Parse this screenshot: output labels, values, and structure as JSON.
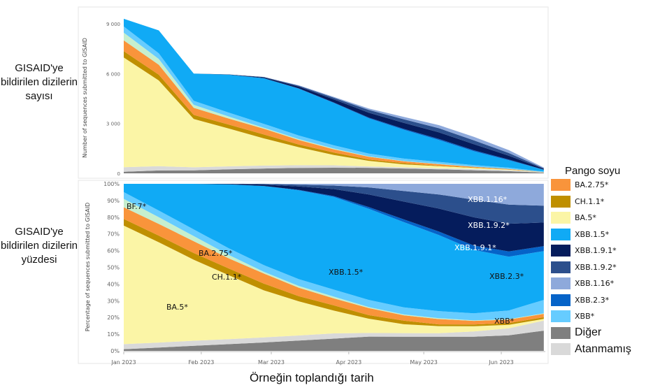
{
  "row_labels": {
    "top": "GISAID'ye bildirilen dizilerin sayısı",
    "bottom": "GISAID'ye bildirilen dizilerin yüzdesi"
  },
  "legend": {
    "title": "Pango soyu",
    "items": [
      {
        "label": "BA.2.75*",
        "color": "#f9943b"
      },
      {
        "label": "CH.1.1*",
        "color": "#bf8f00"
      },
      {
        "label": "BA.5*",
        "color": "#fbf5a6"
      },
      {
        "label": "XBB.1.5*",
        "color": "#10aaf5"
      },
      {
        "label": "XBB.1.9.1*",
        "color": "#051c5c"
      },
      {
        "label": "XBB.1.9.2*",
        "color": "#2c4f8c"
      },
      {
        "label": "XBB.1.16*",
        "color": "#8ea9db"
      },
      {
        "label": "XBB.2.3*",
        "color": "#0563c8"
      },
      {
        "label": "XBB*",
        "color": "#66ccff"
      },
      {
        "label": "Diğer",
        "color": "#7f7f7f"
      },
      {
        "label": "Atanmamış",
        "color": "#d9d9d9"
      }
    ]
  },
  "annotations": {
    "bf7": "BF.7*",
    "ba275": "BA.2.75*",
    "ch11": "CH.1.1*",
    "ba5": "BA.5*",
    "xbb15": "XBB.1.5*",
    "xbb116": "XBB.1.16*",
    "xbb192": "XBB.1.9.2*",
    "xbb191": "XBB.1.9.1*",
    "xbb23": "XBB.2.3*",
    "xbb": "XBB*"
  },
  "chart_data": [
    {
      "type": "area",
      "title": "",
      "ylabel": "Number of sequences submitted to GISAID",
      "xlabel": "Örneğin toplandığı tarih",
      "ylim": [
        0,
        9300
      ],
      "yticks": [
        "0",
        "3 000",
        "6 000",
        "9 000"
      ],
      "ytick_values": [
        0,
        3000,
        6000,
        9000
      ],
      "note": "stacked counts = total × share (see percentage chart)",
      "total": [
        9300,
        8600,
        6000,
        5950,
        5800,
        5300,
        4600,
        3900,
        3400,
        2900,
        2200,
        1400,
        350
      ]
    },
    {
      "type": "area",
      "title": "",
      "ylabel": "Percentage of sequences submitted to GISAID",
      "ylim": [
        0,
        100
      ],
      "yticks": [
        "0%",
        "10%",
        "20%",
        "30%",
        "40%",
        "50%",
        "60%",
        "70%",
        "80%",
        "90%",
        "100%"
      ],
      "x_days": [
        0,
        14,
        28,
        42,
        56,
        70,
        84,
        98,
        112,
        126,
        140,
        154,
        168
      ],
      "xticks": [
        "Jan 2023",
        "Feb 2023",
        "Mar 2023",
        "Apr 2023",
        "May 2023",
        "Jun 2023"
      ],
      "xtick_days": [
        0,
        31,
        59,
        90,
        120,
        151
      ],
      "series": [
        {
          "name": "Diğer",
          "color": "#7f7f7f",
          "values": [
            1,
            2,
            3,
            4,
            5,
            6,
            7,
            8,
            8,
            8,
            8,
            9,
            12
          ]
        },
        {
          "name": "Atanmamış",
          "color": "#d9d9d9",
          "values": [
            3,
            3,
            3,
            3,
            3,
            3,
            3,
            2,
            2,
            2,
            3,
            4,
            6
          ]
        },
        {
          "name": "BA.5*",
          "color": "#fbf5a6",
          "values": [
            71,
            60,
            48,
            38,
            28,
            20,
            13,
            8,
            5,
            4,
            3,
            2,
            1
          ]
        },
        {
          "name": "CH.1.1*",
          "color": "#bf8f00",
          "values": [
            4,
            4,
            4,
            4,
            4,
            3,
            3,
            2,
            2,
            1,
            1,
            1,
            1
          ]
        },
        {
          "name": "BA.2.75*",
          "color": "#f9943b",
          "values": [
            7,
            7,
            7,
            6,
            6,
            5,
            4,
            4,
            3,
            3,
            2,
            2,
            2
          ]
        },
        {
          "name": "BF.7*",
          "color": "#c6efce",
          "values": [
            5,
            4,
            3,
            2,
            1,
            1,
            1,
            0.5,
            0.5,
            0.5,
            0.3,
            0.3,
            0.3
          ]
        },
        {
          "name": "XBB*",
          "color": "#66ccff",
          "values": [
            4,
            4,
            4,
            4,
            4,
            4,
            4,
            4,
            4,
            4,
            4,
            5,
            8
          ]
        },
        {
          "name": "XBB.1.5*",
          "color": "#10aaf5",
          "values": [
            5,
            16,
            27,
            38,
            47,
            52,
            53,
            51,
            48,
            43,
            36,
            31,
            29
          ]
        },
        {
          "name": "XBB.2.3*",
          "color": "#0563c8",
          "values": [
            0,
            0,
            0,
            0,
            0,
            0.3,
            0.5,
            1,
            1.5,
            2,
            2.5,
            3,
            3
          ]
        },
        {
          "name": "XBB.1.9.1*",
          "color": "#051c5c",
          "values": [
            0,
            0,
            0,
            0.3,
            0.8,
            2,
            4,
            7,
            10,
            13,
            16,
            16,
            14
          ]
        },
        {
          "name": "XBB.1.9.2*",
          "color": "#2c4f8c",
          "values": [
            0,
            0,
            0,
            0,
            0.5,
            1,
            2,
            4,
            6,
            8,
            10,
            11,
            10
          ]
        },
        {
          "name": "XBB.1.16*",
          "color": "#8ea9db",
          "values": [
            0,
            0,
            0,
            0,
            0,
            0.5,
            1,
            2,
            4,
            6,
            9,
            12,
            13
          ]
        }
      ]
    }
  ]
}
